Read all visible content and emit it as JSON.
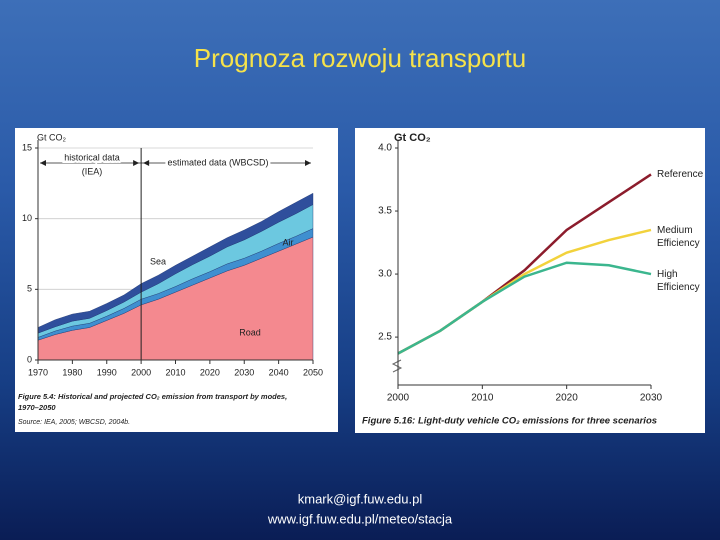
{
  "slide": {
    "title": "Prognoza rozwoju transportu",
    "footer": [
      "kmark@igf.fuw.edu.pl",
      "www.igf.fuw.edu.pl/meteo/stacja"
    ]
  },
  "chart_data": [
    {
      "type": "area",
      "stacked": true,
      "y_label": "Gt CO₂",
      "annotations": [
        "historical data",
        "(IEA)",
        "estimated data (WBCSD)"
      ],
      "divider": 2000,
      "caption": [
        "Figure 5.4: Historical and projected CO₂ emission from transport by modes,",
        "1970–2050"
      ],
      "source": "Source: IEA, 2005; WBCSD, 2004b.",
      "x": [
        1970,
        1975,
        1980,
        1985,
        1990,
        1995,
        2000,
        2005,
        2010,
        2015,
        2020,
        2025,
        2030,
        2035,
        2040,
        2045,
        2050
      ],
      "series": [
        {
          "name": "Road",
          "color": "#f4898f",
          "values": [
            1.4,
            1.8,
            2.1,
            2.3,
            2.8,
            3.3,
            3.9,
            4.3,
            4.8,
            5.3,
            5.8,
            6.3,
            6.7,
            7.2,
            7.7,
            8.2,
            8.7
          ]
        },
        {
          "name": "Sea",
          "color": "#3f8fd0",
          "values": [
            0.2,
            0.25,
            0.3,
            0.3,
            0.3,
            0.35,
            0.4,
            0.4,
            0.4,
            0.45,
            0.45,
            0.5,
            0.5,
            0.5,
            0.55,
            0.55,
            0.6
          ]
        },
        {
          "name": "Air",
          "color": "#6cc8e0",
          "values": [
            0.3,
            0.3,
            0.35,
            0.35,
            0.4,
            0.45,
            0.5,
            0.7,
            0.9,
            1.0,
            1.1,
            1.2,
            1.3,
            1.4,
            1.5,
            1.6,
            1.7
          ]
        },
        {
          "color": "#2f4f9c",
          "values": [
            0.4,
            0.5,
            0.5,
            0.5,
            0.5,
            0.5,
            0.6,
            0.6,
            0.6,
            0.6,
            0.65,
            0.65,
            0.7,
            0.7,
            0.75,
            0.8,
            0.8
          ]
        }
      ],
      "xlim": [
        1970,
        2050
      ],
      "xticks": [
        1970,
        1980,
        1990,
        2000,
        2010,
        2020,
        2030,
        2040,
        2050
      ],
      "ylim": [
        0,
        15
      ],
      "yticks": [
        0,
        5,
        10,
        15
      ],
      "grid": true
    },
    {
      "type": "line",
      "y_label": "Gt CO₂",
      "caption": "Figure 5.16: Light-duty vehicle CO₂ emissions for three scenarios",
      "x": [
        2000,
        2005,
        2010,
        2015,
        2020,
        2025,
        2030
      ],
      "series": [
        {
          "name": "Reference",
          "color": "#8c1c2c",
          "values": [
            2.37,
            2.55,
            2.78,
            3.03,
            3.35,
            3.57,
            3.79
          ]
        },
        {
          "name": "Medium Efficiency",
          "color": "#f2d23c",
          "values": [
            2.37,
            2.55,
            2.78,
            3.0,
            3.17,
            3.27,
            3.35
          ]
        },
        {
          "name": "High Efficiency",
          "color": "#3bb68e",
          "values": [
            2.37,
            2.55,
            2.78,
            2.98,
            3.09,
            3.07,
            3.0
          ]
        }
      ],
      "xlim": [
        2000,
        2030
      ],
      "xticks": [
        2000,
        2010,
        2020,
        2030
      ],
      "ylim": [
        2.12,
        4.0
      ],
      "yticks": [
        2.5,
        {
          "value": 3,
          "label": "3.0"
        },
        3.5,
        {
          "value": 4,
          "label": "4.0"
        }
      ],
      "grid": false
    }
  ]
}
